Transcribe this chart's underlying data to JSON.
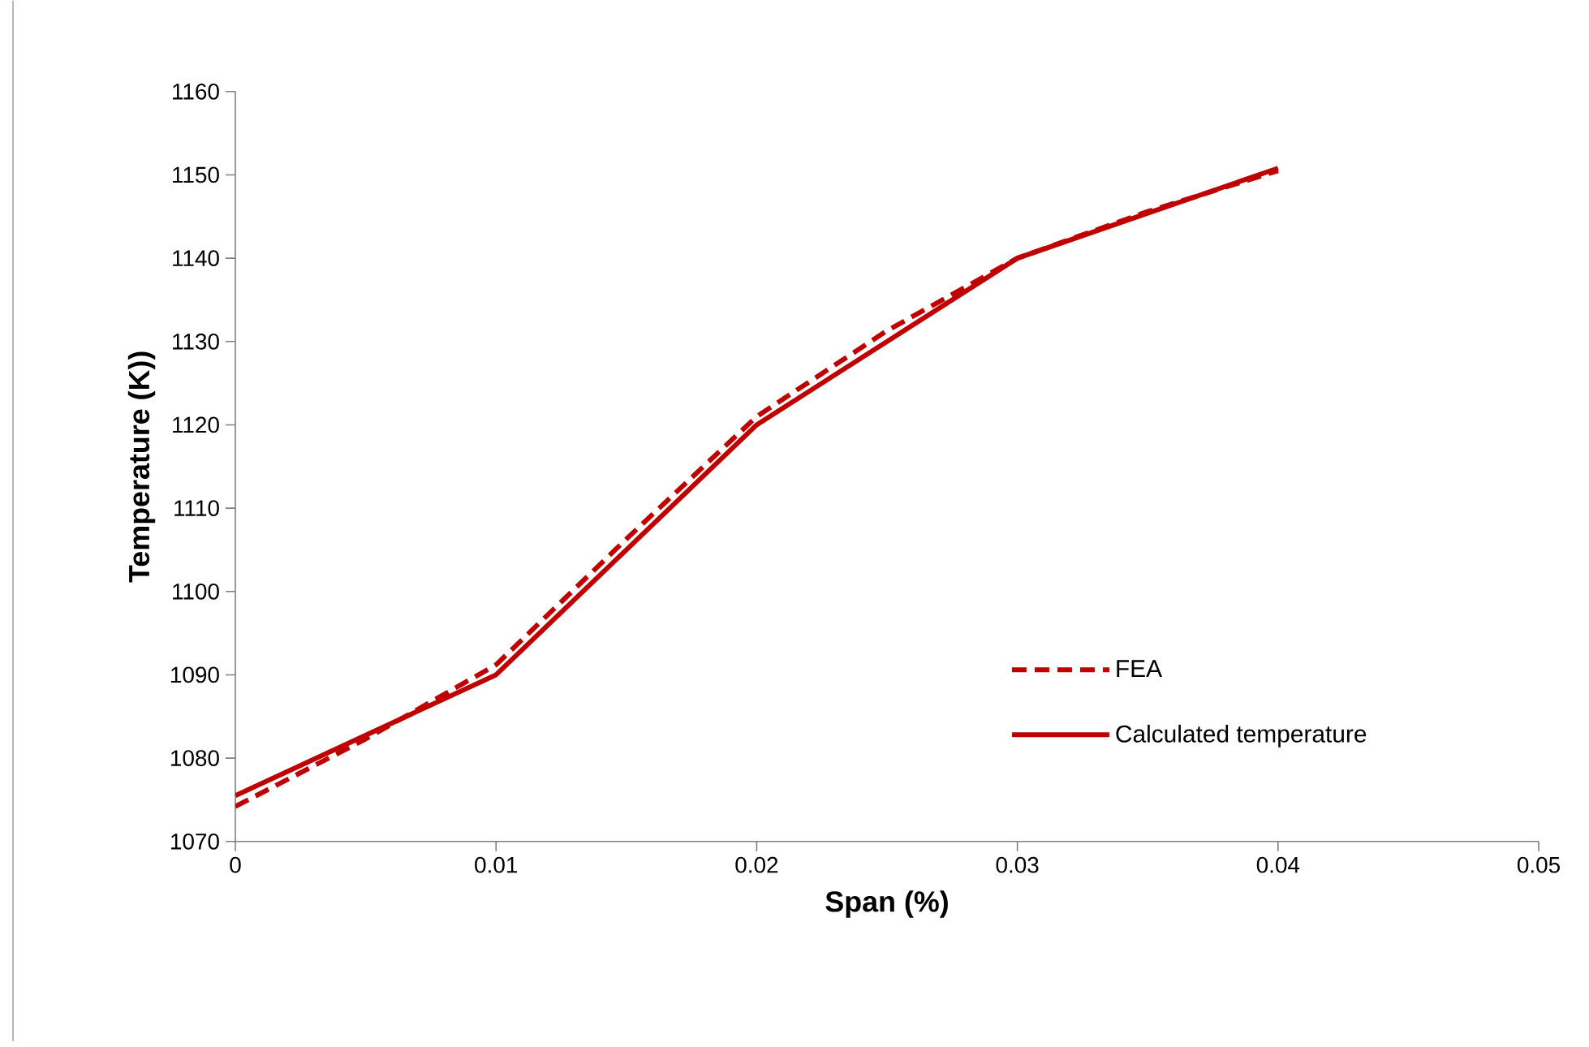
{
  "chart_data": {
    "type": "line",
    "xlabel": "Span (%)",
    "ylabel": "Temperature (K))",
    "xlim": [
      0,
      0.05
    ],
    "ylim": [
      1070,
      1160
    ],
    "xticks": [
      0,
      0.01,
      0.02,
      0.03,
      0.04,
      0.05
    ],
    "yticks": [
      1070,
      1080,
      1090,
      1100,
      1110,
      1120,
      1130,
      1140,
      1150,
      1160
    ],
    "grid": false,
    "legend": "bottom right",
    "marker": "none",
    "series": [
      {
        "name": "FEA",
        "color": "#c00000",
        "line_style": "dashed",
        "x": [
          0,
          0.005,
          0.01,
          0.015,
          0.02,
          0.025,
          0.03,
          0.035,
          0.04
        ],
        "values": [
          1074.2,
          1082.3,
          1091.2,
          1106.3,
          1121.0,
          1131.3,
          1140.0,
          1145.6,
          1150.5
        ]
      },
      {
        "name": "Calculated temperature",
        "color": "#c00000",
        "line_style": "solid",
        "x": [
          0,
          0.01,
          0.02,
          0.03,
          0.04
        ],
        "values": [
          1075.5,
          1090.0,
          1120.0,
          1140.0,
          1150.8
        ]
      }
    ]
  }
}
